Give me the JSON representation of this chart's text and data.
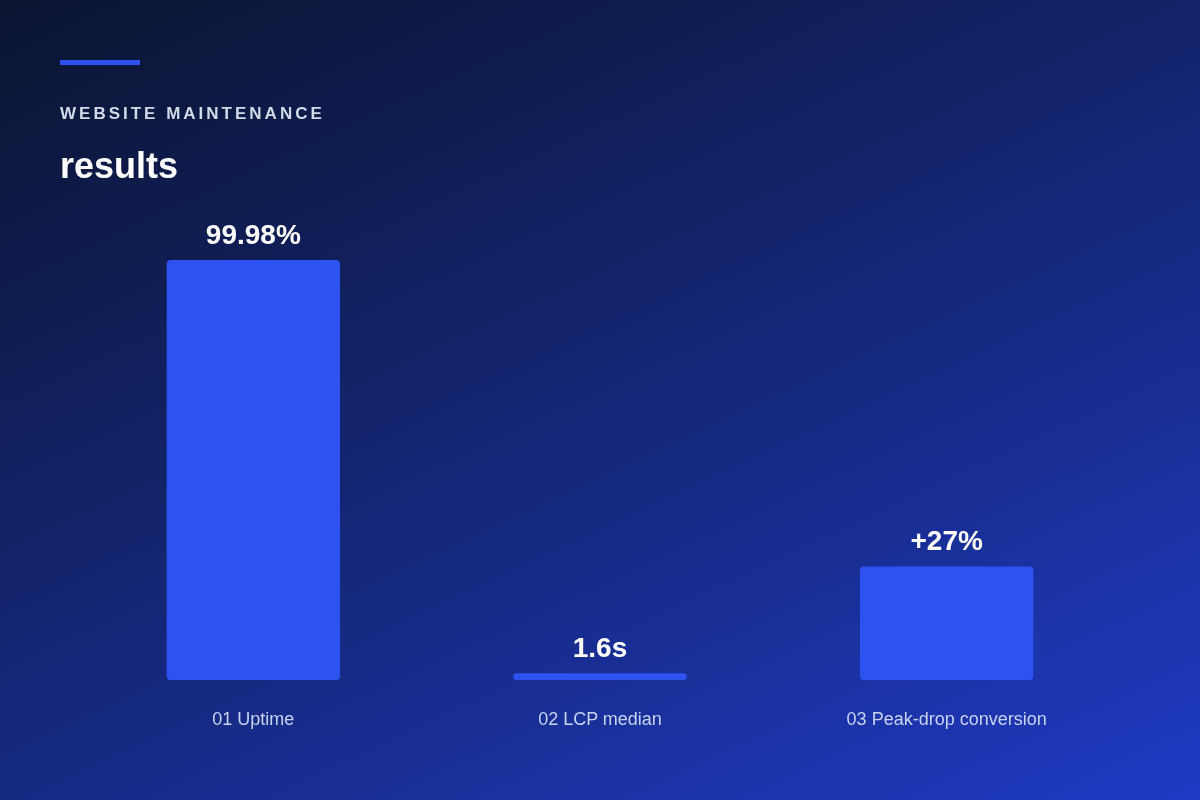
{
  "chart_data": {
    "type": "bar",
    "subtitle": "WEBSITE MAINTENANCE",
    "title": "results",
    "categories": [
      "01 Uptime",
      "02 LCP median",
      "03 Peak-drop conversion"
    ],
    "values": [
      99.98,
      1.6,
      27
    ],
    "value_labels": [
      "99.98%",
      "1.6s",
      "+27%"
    ],
    "color": "#2d52f0"
  }
}
